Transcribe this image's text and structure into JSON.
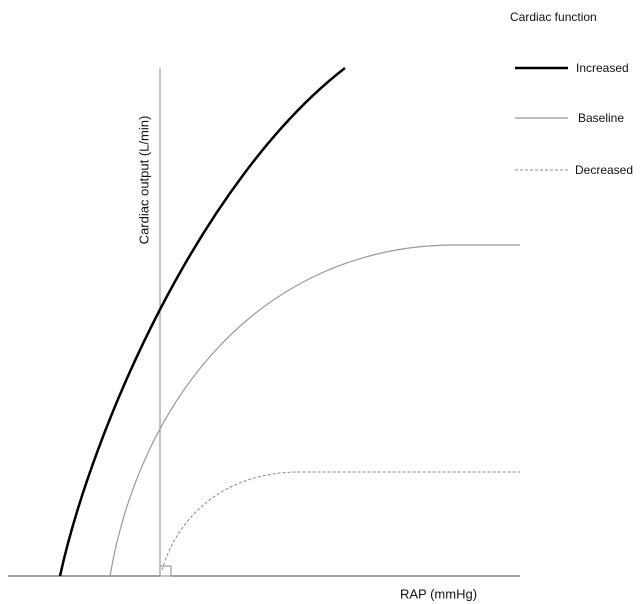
{
  "axis_labels": {
    "y": "Cardiac output (L/min)",
    "x": "RAP (mmHg)"
  },
  "legend": {
    "title": "Cardiac function",
    "items": [
      "Increased",
      "Baseline",
      "Decreased"
    ]
  }
}
